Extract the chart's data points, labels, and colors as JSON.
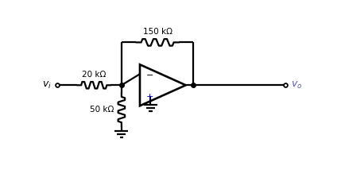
{
  "fig_width": 4.29,
  "fig_height": 2.33,
  "dpi": 100,
  "background_color": "#ffffff",
  "line_color": "#000000",
  "line_width": 1.6,
  "label_color_vi": "#000000",
  "label_color_vo": "#5a5aaa",
  "label_color_plus": "#0000cc",
  "label_color_minus": "#000000",
  "label_color_resistors": "#000000",
  "vi_label": "$v_i$",
  "vo_label": "$v_o$",
  "r1_label": "20 kΩ",
  "r2_label": "50 kΩ",
  "rf_label": "150 kΩ",
  "xlim": [
    0,
    8.58
  ],
  "ylim": [
    0,
    4.66
  ]
}
